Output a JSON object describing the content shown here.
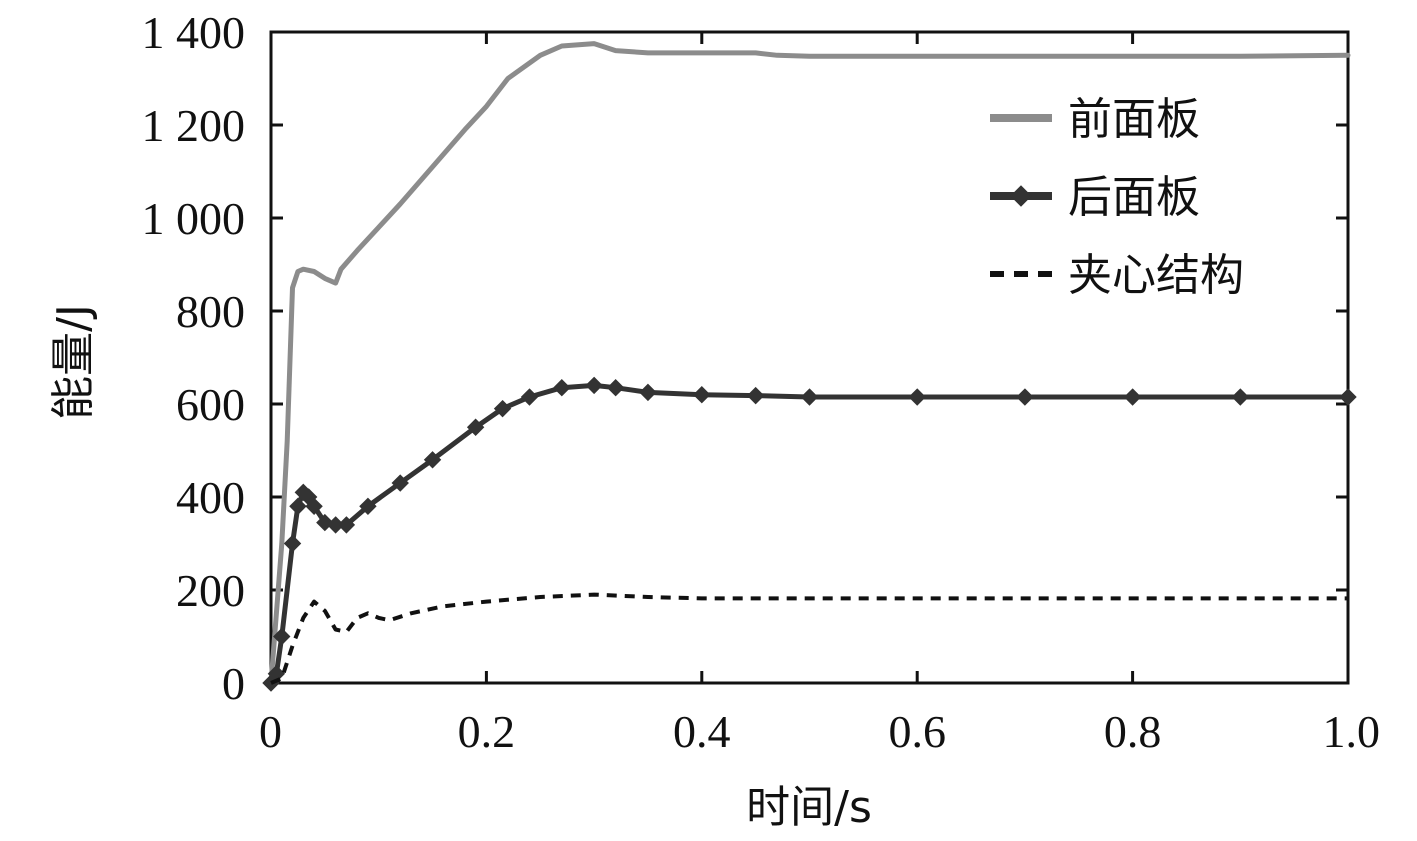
{
  "chart_data": {
    "type": "line",
    "title": "",
    "xlabel": "时间/s",
    "ylabel": "能量/J",
    "xlim": [
      0,
      1.0
    ],
    "ylim": [
      0,
      1400
    ],
    "x_ticks": [
      0,
      0.2,
      0.4,
      0.6,
      0.8,
      1.0
    ],
    "x_tick_labels": [
      "0",
      "0.2",
      "0.4",
      "0.6",
      "0.8",
      "1.0"
    ],
    "y_ticks": [
      0,
      200,
      400,
      600,
      800,
      1000,
      1200,
      1400
    ],
    "y_tick_labels": [
      "0",
      "200",
      "400",
      "600",
      "800",
      "1 000",
      "1 200",
      "1 400"
    ],
    "grid": false,
    "legend_position": "top-right",
    "series": [
      {
        "name": "前面板",
        "color": "#8c8c8c",
        "style": "solid",
        "marker": "none",
        "x": [
          0,
          0.01,
          0.015,
          0.02,
          0.025,
          0.03,
          0.04,
          0.05,
          0.06,
          0.065,
          0.08,
          0.1,
          0.12,
          0.15,
          0.18,
          0.2,
          0.22,
          0.25,
          0.27,
          0.3,
          0.32,
          0.35,
          0.4,
          0.45,
          0.47,
          0.5,
          0.6,
          0.7,
          0.8,
          0.9,
          1.0
        ],
        "y": [
          0,
          300,
          520,
          850,
          885,
          890,
          885,
          870,
          860,
          890,
          930,
          980,
          1030,
          1110,
          1190,
          1240,
          1300,
          1350,
          1370,
          1375,
          1360,
          1355,
          1355,
          1355,
          1350,
          1348,
          1348,
          1348,
          1348,
          1348,
          1350
        ]
      },
      {
        "name": "后面板",
        "color": "#333333",
        "style": "solid",
        "marker": "diamond",
        "x": [
          0,
          0.005,
          0.01,
          0.02,
          0.025,
          0.03,
          0.035,
          0.04,
          0.05,
          0.06,
          0.07,
          0.09,
          0.12,
          0.15,
          0.19,
          0.215,
          0.24,
          0.27,
          0.3,
          0.32,
          0.35,
          0.4,
          0.45,
          0.5,
          0.6,
          0.7,
          0.8,
          0.9,
          1.0
        ],
        "y": [
          0,
          20,
          100,
          300,
          380,
          410,
          400,
          380,
          345,
          340,
          340,
          380,
          430,
          480,
          550,
          590,
          615,
          635,
          640,
          635,
          625,
          620,
          618,
          615,
          615,
          615,
          615,
          615,
          615
        ]
      },
      {
        "name": "夹心结构",
        "color": "#111111",
        "style": "dashed",
        "marker": "none",
        "x": [
          0,
          0.01,
          0.02,
          0.03,
          0.04,
          0.05,
          0.06,
          0.07,
          0.08,
          0.09,
          0.1,
          0.11,
          0.13,
          0.16,
          0.2,
          0.25,
          0.3,
          0.35,
          0.4,
          0.5,
          0.6,
          0.7,
          0.8,
          0.9,
          1.0
        ],
        "y": [
          0,
          10,
          80,
          140,
          175,
          155,
          115,
          110,
          140,
          150,
          140,
          135,
          150,
          165,
          175,
          185,
          190,
          185,
          182,
          182,
          182,
          182,
          182,
          182,
          182
        ]
      }
    ]
  }
}
